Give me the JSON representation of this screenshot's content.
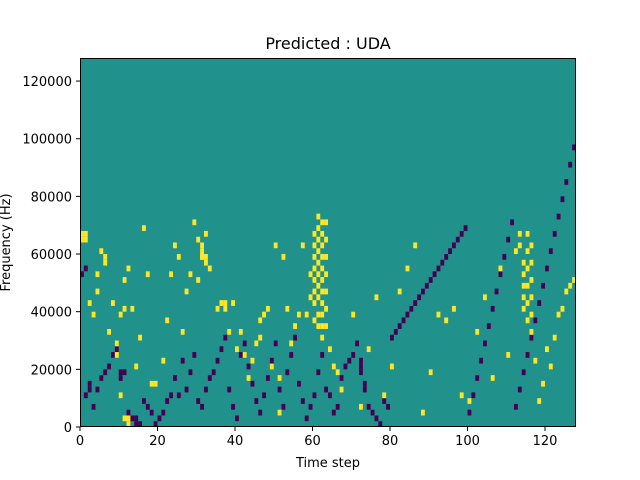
{
  "chart_data": {
    "type": "heatmap",
    "title": "Predicted : UDA",
    "xlabel": "Time step",
    "ylabel": "Frequency (Hz)",
    "xlim": [
      0,
      128
    ],
    "ylim": [
      0,
      128000
    ],
    "x_ticks": [
      "0",
      "20",
      "40",
      "60",
      "80",
      "100",
      "120"
    ],
    "y_ticks": [
      "0",
      "20000",
      "40000",
      "60000",
      "80000",
      "100000",
      "120000"
    ],
    "grid": false,
    "legend": "none",
    "colors": {
      "low": "#440154",
      "mid": "#21918c",
      "high": "#fde725"
    },
    "background_level": "mid",
    "cell_height_hz": 2000,
    "cells": {
      "high": [
        [
          0,
          33
        ],
        [
          1,
          33
        ],
        [
          0,
          32
        ],
        [
          1,
          32
        ],
        [
          2,
          21
        ],
        [
          3,
          19
        ],
        [
          4,
          23
        ],
        [
          4,
          26
        ],
        [
          5,
          30
        ],
        [
          6,
          28
        ],
        [
          6,
          29
        ],
        [
          7,
          16
        ],
        [
          8,
          21
        ],
        [
          9,
          14
        ],
        [
          9,
          12
        ],
        [
          10,
          19
        ],
        [
          10,
          5
        ],
        [
          11,
          25
        ],
        [
          11,
          20
        ],
        [
          12,
          27
        ],
        [
          11,
          1
        ],
        [
          12,
          1
        ],
        [
          12,
          0
        ],
        [
          13,
          20
        ],
        [
          14,
          10
        ],
        [
          15,
          15
        ],
        [
          16,
          34
        ],
        [
          17,
          26
        ],
        [
          18,
          7
        ],
        [
          19,
          7
        ],
        [
          21,
          11
        ],
        [
          22,
          18
        ],
        [
          23,
          26
        ],
        [
          24,
          31
        ],
        [
          25,
          29
        ],
        [
          26,
          16
        ],
        [
          27,
          23
        ],
        [
          28,
          26
        ],
        [
          29,
          35
        ],
        [
          30,
          25
        ],
        [
          30,
          32
        ],
        [
          31,
          29
        ],
        [
          31,
          29
        ],
        [
          31,
          30
        ],
        [
          32,
          28
        ],
        [
          32,
          29
        ],
        [
          32,
          33
        ],
        [
          31,
          31
        ],
        [
          33,
          27
        ],
        [
          35,
          20
        ],
        [
          36,
          21
        ],
        [
          37,
          21
        ],
        [
          37,
          20
        ],
        [
          38,
          16
        ],
        [
          39,
          21
        ],
        [
          40,
          13
        ],
        [
          41,
          16
        ],
        [
          42,
          12
        ],
        [
          43,
          8
        ],
        [
          44,
          11
        ],
        [
          45,
          14
        ],
        [
          46,
          15
        ],
        [
          46,
          18
        ],
        [
          47,
          19
        ],
        [
          48,
          20
        ],
        [
          49,
          10
        ],
        [
          50,
          31
        ],
        [
          51,
          8
        ],
        [
          51,
          2
        ],
        [
          52,
          29
        ],
        [
          53,
          20
        ],
        [
          54,
          14
        ],
        [
          55,
          17
        ],
        [
          56,
          19
        ],
        [
          57,
          31
        ],
        [
          58,
          19
        ],
        [
          59,
          22
        ],
        [
          59,
          26
        ],
        [
          60,
          18
        ],
        [
          60,
          21
        ],
        [
          60,
          23
        ],
        [
          60,
          25
        ],
        [
          60,
          27
        ],
        [
          60,
          29
        ],
        [
          60,
          31
        ],
        [
          60,
          33
        ],
        [
          61,
          17
        ],
        [
          61,
          19
        ],
        [
          61,
          22
        ],
        [
          61,
          24
        ],
        [
          61,
          26
        ],
        [
          61,
          28
        ],
        [
          61,
          30
        ],
        [
          61,
          32
        ],
        [
          61,
          34
        ],
        [
          61,
          36
        ],
        [
          62,
          15
        ],
        [
          62,
          17
        ],
        [
          62,
          19
        ],
        [
          62,
          21
        ],
        [
          62,
          23
        ],
        [
          62,
          25
        ],
        [
          62,
          27
        ],
        [
          62,
          29
        ],
        [
          62,
          31
        ],
        [
          62,
          33
        ],
        [
          62,
          35
        ],
        [
          63,
          17
        ],
        [
          63,
          20
        ],
        [
          63,
          23
        ],
        [
          63,
          26
        ],
        [
          63,
          29
        ],
        [
          63,
          32
        ],
        [
          63,
          35
        ],
        [
          64,
          13
        ],
        [
          65,
          10
        ],
        [
          66,
          9
        ],
        [
          67,
          6
        ],
        [
          70,
          19
        ],
        [
          72,
          3
        ],
        [
          74,
          13
        ],
        [
          76,
          22
        ],
        [
          78,
          5
        ],
        [
          80,
          10
        ],
        [
          82,
          23
        ],
        [
          84,
          27
        ],
        [
          86,
          31
        ],
        [
          88,
          2
        ],
        [
          90,
          9
        ],
        [
          92,
          19
        ],
        [
          94,
          18
        ],
        [
          96,
          20
        ],
        [
          98,
          5
        ],
        [
          100,
          4
        ],
        [
          102,
          16
        ],
        [
          104,
          22
        ],
        [
          106,
          8
        ],
        [
          108,
          27
        ],
        [
          110,
          12
        ],
        [
          112,
          30
        ],
        [
          113,
          31
        ],
        [
          113,
          33
        ],
        [
          114,
          20
        ],
        [
          114,
          22
        ],
        [
          114,
          24
        ],
        [
          114,
          26
        ],
        [
          114,
          28
        ],
        [
          115,
          18
        ],
        [
          115,
          21
        ],
        [
          115,
          24
        ],
        [
          115,
          27
        ],
        [
          115,
          30
        ],
        [
          115,
          33
        ],
        [
          116,
          16
        ],
        [
          116,
          19
        ],
        [
          116,
          22
        ],
        [
          116,
          25
        ],
        [
          116,
          28
        ],
        [
          116,
          31
        ],
        [
          117,
          11
        ],
        [
          118,
          4
        ],
        [
          119,
          7
        ],
        [
          120,
          13
        ],
        [
          121,
          10
        ],
        [
          122,
          15
        ],
        [
          123,
          19
        ],
        [
          124,
          20
        ],
        [
          125,
          23
        ],
        [
          126,
          24
        ],
        [
          127,
          25
        ]
      ],
      "low": [
        [
          0,
          26
        ],
        [
          1,
          27
        ],
        [
          1,
          5
        ],
        [
          2,
          7
        ],
        [
          2,
          6
        ],
        [
          3,
          3
        ],
        [
          4,
          6
        ],
        [
          5,
          8
        ],
        [
          6,
          9
        ],
        [
          7,
          10
        ],
        [
          8,
          12
        ],
        [
          9,
          13
        ],
        [
          10,
          8
        ],
        [
          10,
          9
        ],
        [
          11,
          9
        ],
        [
          12,
          2
        ],
        [
          13,
          1
        ],
        [
          14,
          1
        ],
        [
          14,
          0
        ],
        [
          15,
          0
        ],
        [
          16,
          4
        ],
        [
          17,
          3
        ],
        [
          18,
          2
        ],
        [
          19,
          0
        ],
        [
          20,
          1
        ],
        [
          21,
          2
        ],
        [
          22,
          4
        ],
        [
          23,
          5
        ],
        [
          24,
          8
        ],
        [
          25,
          5
        ],
        [
          26,
          11
        ],
        [
          27,
          6
        ],
        [
          28,
          9
        ],
        [
          29,
          12
        ],
        [
          30,
          4
        ],
        [
          31,
          3
        ],
        [
          32,
          6
        ],
        [
          33,
          8
        ],
        [
          34,
          9
        ],
        [
          35,
          11
        ],
        [
          36,
          13
        ],
        [
          37,
          15
        ],
        [
          38,
          6
        ],
        [
          39,
          3
        ],
        [
          40,
          1
        ],
        [
          41,
          12
        ],
        [
          42,
          14
        ],
        [
          43,
          10
        ],
        [
          44,
          7
        ],
        [
          45,
          4
        ],
        [
          46,
          2
        ],
        [
          47,
          5
        ],
        [
          48,
          8
        ],
        [
          49,
          11
        ],
        [
          50,
          14
        ],
        [
          51,
          6
        ],
        [
          52,
          3
        ],
        [
          53,
          9
        ],
        [
          54,
          12
        ],
        [
          55,
          15
        ],
        [
          56,
          7
        ],
        [
          57,
          4
        ],
        [
          58,
          1
        ],
        [
          59,
          3
        ],
        [
          60,
          5
        ],
        [
          61,
          9
        ],
        [
          62,
          12
        ],
        [
          63,
          6
        ],
        [
          64,
          5
        ],
        [
          65,
          2
        ],
        [
          66,
          3
        ],
        [
          67,
          8
        ],
        [
          68,
          10
        ],
        [
          69,
          11
        ],
        [
          70,
          12
        ],
        [
          71,
          14
        ],
        [
          72,
          9
        ],
        [
          72,
          10
        ],
        [
          72,
          11
        ],
        [
          73,
          6
        ],
        [
          73,
          7
        ],
        [
          74,
          3
        ],
        [
          75,
          2
        ],
        [
          76,
          1
        ],
        [
          77,
          0
        ],
        [
          78,
          4
        ],
        [
          79,
          3
        ],
        [
          80,
          15
        ],
        [
          81,
          16
        ],
        [
          82,
          17
        ],
        [
          83,
          18
        ],
        [
          84,
          19
        ],
        [
          85,
          20
        ],
        [
          86,
          21
        ],
        [
          87,
          22
        ],
        [
          88,
          23
        ],
        [
          89,
          24
        ],
        [
          90,
          25
        ],
        [
          91,
          26
        ],
        [
          92,
          27
        ],
        [
          93,
          28
        ],
        [
          94,
          29
        ],
        [
          95,
          30
        ],
        [
          96,
          31
        ],
        [
          97,
          32
        ],
        [
          98,
          33
        ],
        [
          99,
          34
        ],
        [
          100,
          2
        ],
        [
          101,
          5
        ],
        [
          102,
          8
        ],
        [
          103,
          11
        ],
        [
          104,
          14
        ],
        [
          105,
          17
        ],
        [
          106,
          20
        ],
        [
          107,
          23
        ],
        [
          108,
          26
        ],
        [
          109,
          29
        ],
        [
          110,
          32
        ],
        [
          111,
          35
        ],
        [
          112,
          3
        ],
        [
          113,
          6
        ],
        [
          114,
          9
        ],
        [
          115,
          12
        ],
        [
          116,
          15
        ],
        [
          117,
          18
        ],
        [
          118,
          21
        ],
        [
          119,
          24
        ],
        [
          120,
          27
        ],
        [
          121,
          30
        ],
        [
          122,
          33
        ],
        [
          123,
          36
        ],
        [
          124,
          39
        ],
        [
          125,
          42
        ],
        [
          126,
          45
        ],
        [
          127,
          48
        ]
      ]
    }
  }
}
